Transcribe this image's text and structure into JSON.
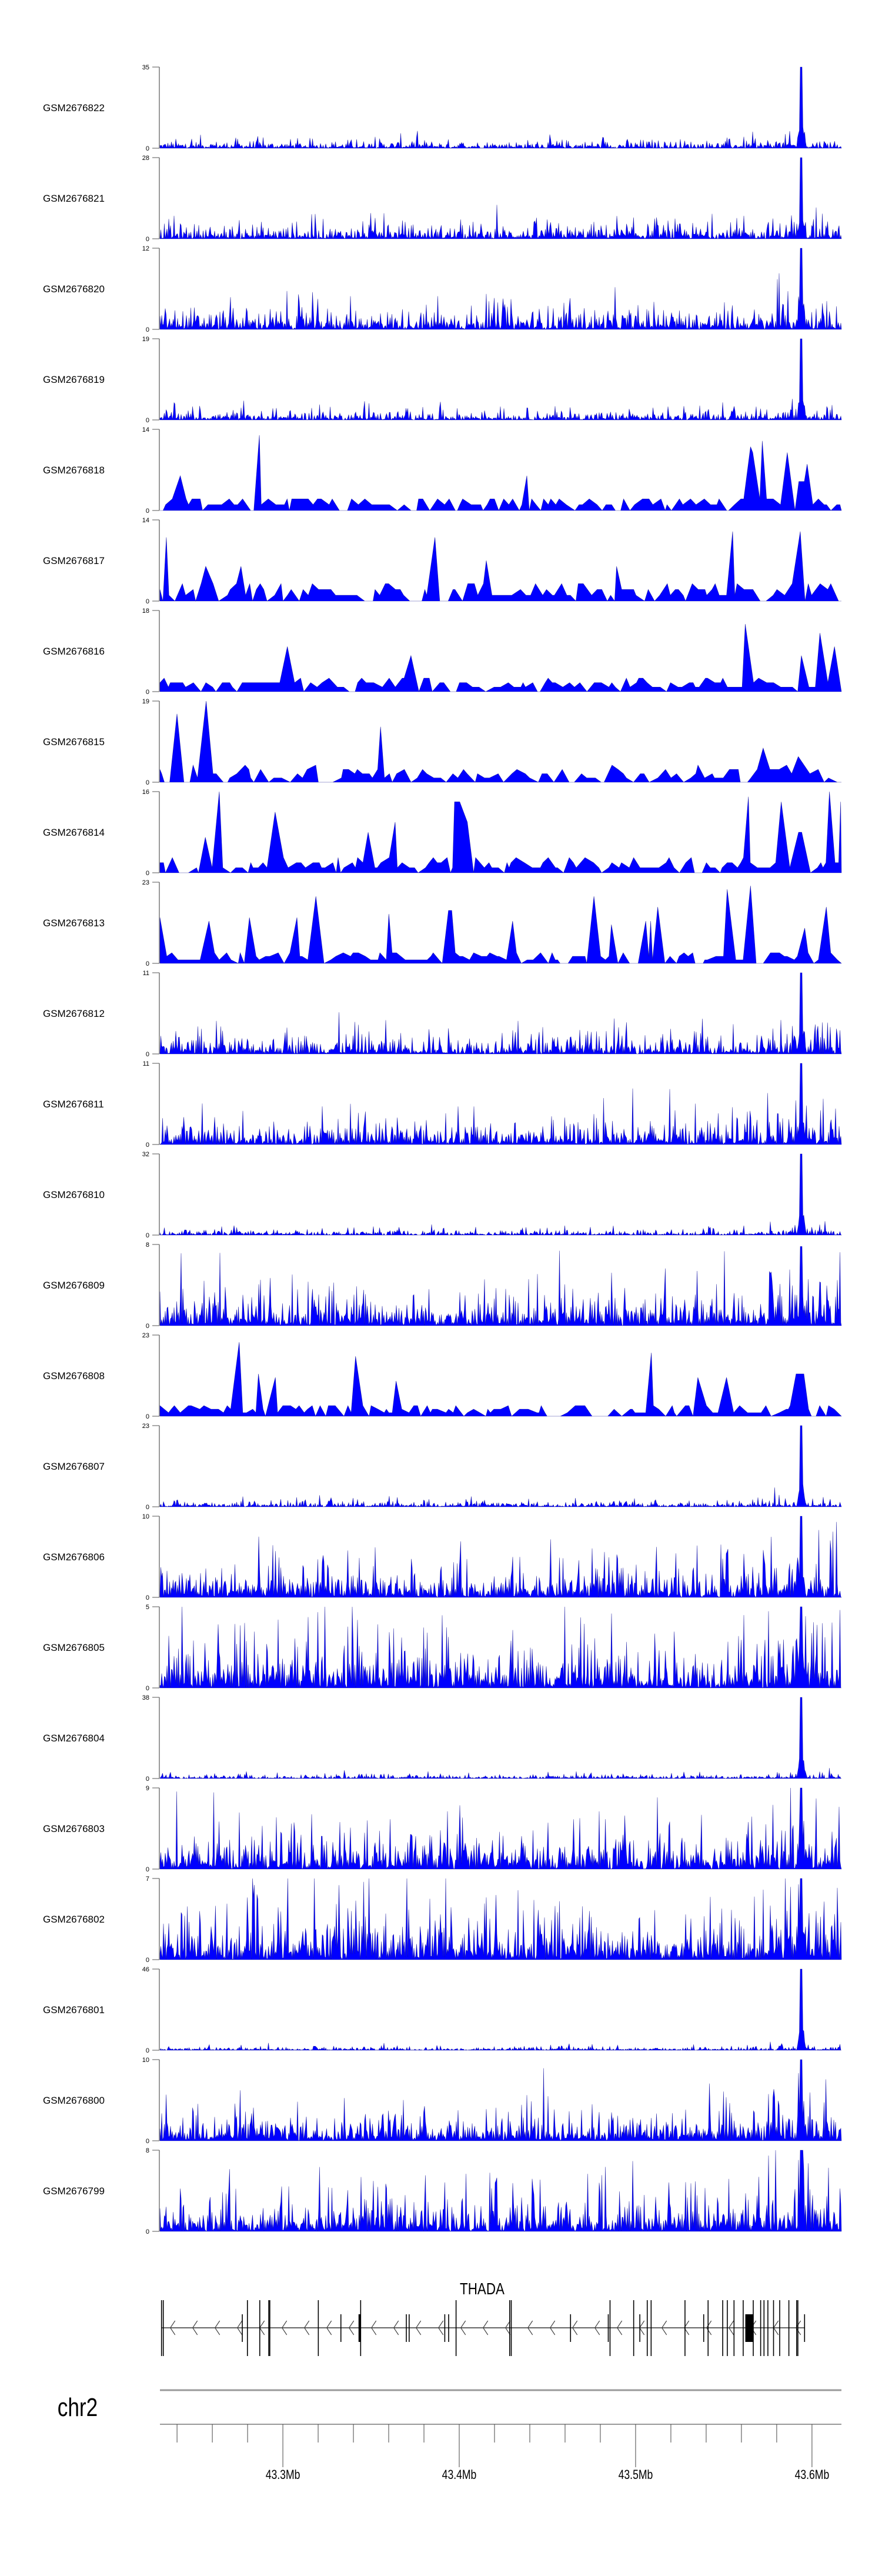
{
  "chart_data": {
    "type": "area",
    "title": "",
    "chromosome": "chr2",
    "xlim_mb": [
      43.2303,
      43.6167
    ],
    "x_tick_labels": [
      "43.3Mb",
      "43.4Mb",
      "43.5Mb",
      "43.6Mb"
    ],
    "x_major_ticks_mb": [
      43.3,
      43.4,
      43.5,
      43.6
    ],
    "x_minor_step_mb": 0.02,
    "fill_color": "#0000ff",
    "stroke_color": "#00008b",
    "axis_color": "#999999",
    "common_peak_mb": 43.594,
    "tracks": [
      {
        "name": "GSM2676822",
        "ymin": "0",
        "ymax": "35",
        "ymax_value": 35,
        "style": "dense",
        "noise": 1.6,
        "peak": 35
      },
      {
        "name": "GSM2676821",
        "ymin": "0",
        "ymax": "28",
        "ymax_value": 28,
        "style": "dense",
        "noise": 2.2,
        "peak": 28
      },
      {
        "name": "GSM2676820",
        "ymin": "0",
        "ymax": "12",
        "ymax_value": 12,
        "style": "dense",
        "noise": 1.4,
        "peak": 12
      },
      {
        "name": "GSM2676819",
        "ymin": "0",
        "ymax": "19",
        "ymax_value": 19,
        "style": "dense",
        "noise": 1.0,
        "peak": 19
      },
      {
        "name": "GSM2676818",
        "ymin": "0",
        "ymax": "14",
        "ymax_value": 14,
        "style": "sparse",
        "noise": 1.0,
        "peak": 5
      },
      {
        "name": "GSM2676817",
        "ymin": "0",
        "ymax": "14",
        "ymax_value": 14,
        "style": "sparse",
        "noise": 1.3,
        "peak": 12
      },
      {
        "name": "GSM2676816",
        "ymin": "0",
        "ymax": "18",
        "ymax_value": 18,
        "style": "sparse",
        "noise": 1.2,
        "peak": 8
      },
      {
        "name": "GSM2676815",
        "ymin": "0",
        "ymax": "19",
        "ymax_value": 19,
        "style": "sparse",
        "noise": 1.6,
        "peak": 6
      },
      {
        "name": "GSM2676814",
        "ymin": "0",
        "ymax": "16",
        "ymax_value": 16,
        "style": "sparse",
        "noise": 1.2,
        "peak": 8
      },
      {
        "name": "GSM2676813",
        "ymin": "0",
        "ymax": "23",
        "ymax_value": 23,
        "style": "sparse",
        "noise": 1.4,
        "peak": 10
      },
      {
        "name": "GSM2676812",
        "ymin": "0",
        "ymax": "11",
        "ymax_value": 11,
        "style": "dense",
        "noise": 1.3,
        "peak": 11
      },
      {
        "name": "GSM2676811",
        "ymin": "0",
        "ymax": "11",
        "ymax_value": 11,
        "style": "dense",
        "noise": 1.5,
        "peak": 11
      },
      {
        "name": "GSM2676810",
        "ymin": "0",
        "ymax": "32",
        "ymax_value": 32,
        "style": "dense",
        "noise": 0.9,
        "peak": 32
      },
      {
        "name": "GSM2676809",
        "ymin": "0",
        "ymax": "8",
        "ymax_value": 8,
        "style": "dense",
        "noise": 1.6,
        "peak": 6
      },
      {
        "name": "GSM2676808",
        "ymin": "0",
        "ymax": "23",
        "ymax_value": 23,
        "style": "sparse",
        "noise": 1.5,
        "peak": 12
      },
      {
        "name": "GSM2676807",
        "ymin": "0",
        "ymax": "23",
        "ymax_value": 23,
        "style": "dense",
        "noise": 0.8,
        "peak": 23
      },
      {
        "name": "GSM2676806",
        "ymin": "0",
        "ymax": "10",
        "ymax_value": 10,
        "style": "dense",
        "noise": 1.8,
        "peak": 10
      },
      {
        "name": "GSM2676805",
        "ymin": "0",
        "ymax": "5",
        "ymax_value": 5,
        "style": "dense",
        "noise": 1.3,
        "peak": 5
      },
      {
        "name": "GSM2676804",
        "ymin": "0",
        "ymax": "38",
        "ymax_value": 38,
        "style": "dense",
        "noise": 0.9,
        "peak": 38
      },
      {
        "name": "GSM2676803",
        "ymin": "0",
        "ymax": "9",
        "ymax_value": 9,
        "style": "dense",
        "noise": 1.7,
        "peak": 9
      },
      {
        "name": "GSM2676802",
        "ymin": "0",
        "ymax": "7",
        "ymax_value": 7,
        "style": "dense",
        "noise": 1.9,
        "peak": 7
      },
      {
        "name": "GSM2676801",
        "ymin": "0",
        "ymax": "46",
        "ymax_value": 46,
        "style": "dense",
        "noise": 0.9,
        "peak": 46
      },
      {
        "name": "GSM2676800",
        "ymin": "0",
        "ymax": "10",
        "ymax_value": 10,
        "style": "dense",
        "noise": 1.7,
        "peak": 10
      },
      {
        "name": "GSM2676799",
        "ymin": "0",
        "ymax": "8",
        "ymax_value": 8,
        "style": "dense",
        "noise": 1.6,
        "peak": 8
      }
    ],
    "gene": {
      "name": "THADA",
      "strand": "-",
      "start_mb": 43.2312,
      "end_mb": 43.5958,
      "tall_exons_mb": [
        43.2312,
        43.2322,
        43.2799,
        43.2869,
        43.292,
        43.2926,
        43.3201,
        43.3441,
        43.3982,
        43.4286,
        43.4295,
        43.4855,
        43.4989,
        43.5066,
        43.5088,
        43.528,
        43.5411,
        43.5494,
        43.552,
        43.5558,
        43.561,
        43.5667,
        43.5709,
        43.5728,
        43.575,
        43.5782,
        43.5817,
        43.5869,
        43.5913,
        43.592
      ],
      "short_exons_mb": [
        43.277,
        43.3329,
        43.37,
        43.3716,
        43.3918,
        43.394,
        43.4631,
        43.4845,
        43.5024,
        43.5386,
        43.5958
      ],
      "blocks_mb": [
        [
          43.3429,
          43.3441
        ],
        [
          43.5622,
          43.5667
        ]
      ]
    }
  }
}
